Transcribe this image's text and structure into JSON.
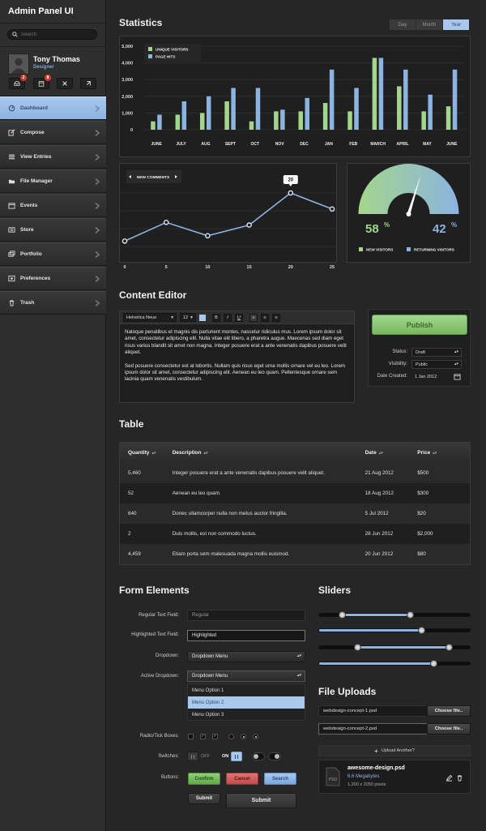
{
  "app": {
    "title": "Admin Panel UI"
  },
  "search": {
    "placeholder": "Search"
  },
  "user": {
    "name": "Tony Thomas",
    "role": "Designer",
    "badges": [
      "2",
      "8"
    ]
  },
  "nav": [
    {
      "label": "Dashboard",
      "icon": "dashboard-icon",
      "active": true
    },
    {
      "label": "Compose",
      "icon": "compose-icon"
    },
    {
      "label": "View Entries",
      "icon": "list-icon"
    },
    {
      "label": "File Manager",
      "icon": "folder-icon"
    },
    {
      "label": "Events",
      "icon": "calendar-icon"
    },
    {
      "label": "Store",
      "icon": "store-icon"
    },
    {
      "label": "Portfolio",
      "icon": "portfolio-icon"
    },
    {
      "label": "Preferences",
      "icon": "preferences-icon"
    },
    {
      "label": "Trash",
      "icon": "trash-icon"
    }
  ],
  "stats": {
    "title": "Statistics",
    "ranges": [
      "Day",
      "Month",
      "Year"
    ],
    "active_range": "Year"
  },
  "chart_data": [
    {
      "type": "bar",
      "categories": [
        "JUNE",
        "JULY",
        "AUG",
        "SEPT",
        "OCT",
        "NOV",
        "DEC",
        "JAN",
        "FEB",
        "MARCH",
        "APRIL",
        "MAY",
        "JUNE"
      ],
      "series": [
        {
          "name": "UNIQUE VISITORS",
          "color": "#a3d68d",
          "values": [
            500,
            900,
            1000,
            1700,
            500,
            1100,
            1100,
            1600,
            1100,
            4300,
            2600,
            1100,
            1400
          ]
        },
        {
          "name": "PAGE HITS",
          "color": "#8db3e0",
          "values": [
            900,
            1700,
            2000,
            2500,
            2500,
            1200,
            1900,
            3600,
            2500,
            4300,
            3600,
            2100,
            3600
          ]
        }
      ],
      "yticks": [
        "0",
        "1,000",
        "2,000",
        "3,000",
        "4,000",
        "5,000"
      ],
      "ylim": [
        0,
        5000
      ]
    },
    {
      "type": "line",
      "title": "NEW COMMENTS",
      "x": [
        0,
        5,
        10,
        15,
        20,
        25
      ],
      "values": [
        2,
        9,
        4,
        8,
        20,
        14
      ],
      "callout": "20",
      "color": "#8db3e0"
    },
    {
      "type": "gauge",
      "series": [
        {
          "name": "NEW VISITORS",
          "value": "58",
          "color": "#a3d68d"
        },
        {
          "name": "RETURNING VISITORS",
          "value": "42",
          "color": "#8db3e0"
        }
      ],
      "unit": "%"
    }
  ],
  "editor": {
    "title": "Content Editor",
    "font": "Helvetica Neue",
    "size": "12",
    "format_buttons": [
      "B",
      "I",
      "U"
    ],
    "paragraphs": [
      "Natoque penatibus et magnis dis parturient montes, nascetur ridiculus mus. Lorem ipsum dolor sit amet, consectetur adipiscing elit. Nulla vitae elit libero, a pharetra augue. Maecenas sed diam eget risus varius blandit sit amet non magna. Integer posuere erat a ante venenatis dapibus posuere velit aliquet.",
      "Sed posuere consectetur est at lobortis. Nullam quis risus eget urna mollis ornare vel eu leo. Lorem ipsum dolor sit amet, consectetur adipiscing elit. Aenean eu leo quam. Pellentesque ornare sem lacinia quam venenatis vestibulum."
    ]
  },
  "publish": {
    "button": "Publish",
    "status_label": "Status:",
    "status": "Draft",
    "visibility_label": "Visibility:",
    "visibility": "Public",
    "date_label": "Date Created:",
    "date": "1 Jan 2012"
  },
  "table": {
    "title": "Table",
    "headers": [
      "Quantity",
      "Description",
      "Date",
      "Price"
    ],
    "rows": [
      [
        "5,460",
        "Integer posuere erat a ante venenatis dapibus posuere velit aliquet.",
        "21 Aug 2012",
        "$500"
      ],
      [
        "52",
        "Aenean eu leo quam.",
        "18 Aug 2012",
        "$300"
      ],
      [
        "640",
        "Donec ullamcorper nulla non metus auctor fringilla.",
        "5 Jul 2012",
        "$20"
      ],
      [
        "2",
        "Duis mollis, est non commodo luctus.",
        "28 Jun 2012",
        "$2,000"
      ],
      [
        "4,459",
        "Etiam porta sem malesuada magna mollis euismod.",
        "20 Jun 2012",
        "$80"
      ]
    ]
  },
  "form": {
    "title": "Form Elements",
    "regular_label": "Regular Text Field:",
    "regular_placeholder": "Regular",
    "highlighted_label": "Highlighted Text Field:",
    "highlighted_value": "Highlighted",
    "dropdown_label": "Dropdown:",
    "dropdown_value": "Dropdown Menu",
    "active_dropdown_label": "Active Dropdown:",
    "active_dropdown_value": "Dropdown Menu",
    "options": [
      "Menu Option 1",
      "Menu Option 2",
      "Menu Option 3"
    ],
    "selected_option": "Menu Option 2",
    "radio_label": "Radio/Tick Boxes:",
    "switches_label": "Switches:",
    "off": "OFF",
    "on": "ON",
    "buttons_label": "Buttons:",
    "confirm": "Confirm",
    "cancel": "Cancel",
    "search": "Search",
    "submit_small": "Submit",
    "submit_large": "Submit"
  },
  "sliders": {
    "title": "Sliders",
    "ranges": [
      [
        0.15,
        0.6
      ],
      [
        0,
        0.68
      ],
      [
        0.25,
        0.86
      ],
      [
        0,
        0.76
      ]
    ]
  },
  "uploads": {
    "title": "File Uploads",
    "files": [
      "webdesign-concept-1.psd",
      "webdesign-concept-2.psd"
    ],
    "choose": "Choose file..",
    "another": "Upload Another?",
    "card_name": "awesome-design.psd",
    "card_size": "6.6 Megabytes",
    "card_dims": "1,200 x 2050 pixels"
  }
}
